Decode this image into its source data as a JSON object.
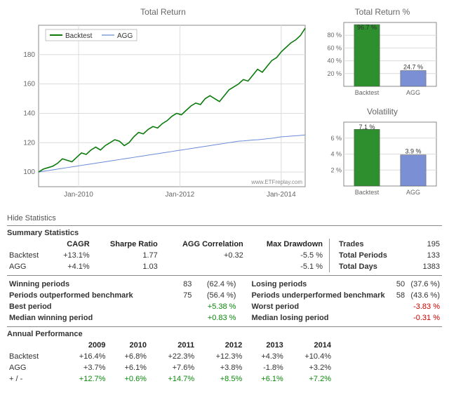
{
  "main_chart": {
    "title": "Total Return",
    "legend": [
      "Backtest",
      "AGG"
    ],
    "colors": {
      "backtest": "#0a7a0a",
      "agg": "#6a8ad8",
      "grid": "#dcdcdc",
      "axis": "#888",
      "bg": "#ffffff",
      "text": "#666"
    },
    "ylim": [
      90,
      200
    ],
    "yticks": [
      100,
      120,
      140,
      160,
      180
    ],
    "xlabels": [
      "Jan-2010",
      "Jan-2012",
      "Jan-2014"
    ],
    "footer": "www.ETFreplay.com",
    "backtest": [
      100,
      102,
      103,
      104,
      106,
      109,
      108,
      107,
      110,
      113,
      112,
      115,
      117,
      115,
      118,
      120,
      122,
      121,
      118,
      120,
      124,
      127,
      126,
      129,
      131,
      130,
      133,
      135,
      138,
      140,
      139,
      142,
      145,
      147,
      146,
      150,
      152,
      150,
      148,
      152,
      156,
      158,
      160,
      163,
      162,
      166,
      170,
      168,
      172,
      176,
      178,
      182,
      185,
      188,
      190,
      193,
      198
    ],
    "agg": [
      100,
      100.5,
      101,
      101.5,
      102,
      102.5,
      103,
      103.5,
      104,
      104.5,
      105,
      105.5,
      106,
      106.5,
      107,
      107.5,
      108,
      108.5,
      109,
      109.5,
      110,
      110.5,
      111,
      111.5,
      112,
      112.5,
      113,
      113.5,
      114,
      114.5,
      115,
      115.5,
      116,
      116.5,
      117,
      117.5,
      118,
      118.5,
      119,
      119.5,
      120,
      120.5,
      121,
      121.2,
      121.5,
      121.8,
      122,
      122.3,
      122.7,
      123,
      123.5,
      124,
      124.2,
      124.5,
      124.7,
      125,
      125.3
    ]
  },
  "bar1": {
    "title": "Total Return %",
    "categories": [
      "Backtest",
      "AGG"
    ],
    "values": [
      96.7,
      24.7
    ],
    "labels": [
      "96.7 %",
      "24.7 %"
    ],
    "colors": [
      "#2d8f2d",
      "#7a8fd4"
    ],
    "ylim": [
      0,
      100
    ],
    "yticks": [
      20,
      40,
      60,
      80
    ],
    "grid": "#dcdcdc",
    "axis": "#888",
    "text": "#666"
  },
  "bar2": {
    "title": "Volatility",
    "categories": [
      "Backtest",
      "AGG"
    ],
    "values": [
      7.1,
      3.9
    ],
    "labels": [
      "7.1 %",
      "3.9 %"
    ],
    "colors": [
      "#2d8f2d",
      "#7a8fd4"
    ],
    "ylim": [
      0,
      8
    ],
    "yticks": [
      2,
      4,
      6
    ],
    "grid": "#dcdcdc",
    "axis": "#888",
    "text": "#666"
  },
  "hide_stats": "Hide Statistics",
  "summary": {
    "title": "Summary Statistics",
    "cols": [
      "",
      "CAGR",
      "Sharpe Ratio",
      "AGG Correlation",
      "Max Drawdown"
    ],
    "rows": [
      [
        "Backtest",
        "+13.1%",
        "1.77",
        "+0.32",
        "-5.5 %"
      ],
      [
        "AGG",
        "+4.1%",
        "1.03",
        "",
        "-5.1 %"
      ]
    ],
    "side": [
      [
        "Trades",
        "195"
      ],
      [
        "Total Periods",
        "133"
      ],
      [
        "Total Days",
        "1383"
      ]
    ]
  },
  "periods": {
    "left": [
      {
        "label": "Winning periods",
        "v1": "83",
        "v2": "(62.4 %)",
        "cls": ""
      },
      {
        "label": "Periods outperformed benchmark",
        "v1": "75",
        "v2": "(56.4 %)",
        "cls": ""
      },
      {
        "label": "Best period",
        "v1": "",
        "v2": "+5.38 %",
        "cls": "green"
      },
      {
        "label": "Median winning period",
        "v1": "",
        "v2": "+0.83 %",
        "cls": "green"
      }
    ],
    "right": [
      {
        "label": "Losing periods",
        "v1": "50",
        "v2": "(37.6 %)",
        "cls": ""
      },
      {
        "label": "Periods underperformed benchmark",
        "v1": "58",
        "v2": "(43.6 %)",
        "cls": ""
      },
      {
        "label": "Worst period",
        "v1": "",
        "v2": "-3.83 %",
        "cls": "red"
      },
      {
        "label": "Median losing period",
        "v1": "",
        "v2": "-0.31 %",
        "cls": "red"
      }
    ]
  },
  "annual": {
    "title": "Annual Performance",
    "years": [
      "",
      "2009",
      "2010",
      "2011",
      "2012",
      "2013",
      "2014"
    ],
    "rows": [
      {
        "label": "Backtest",
        "vals": [
          "+16.4%",
          "+6.8%",
          "+22.3%",
          "+12.3%",
          "+4.3%",
          "+10.4%"
        ],
        "cls": ""
      },
      {
        "label": "AGG",
        "vals": [
          "+3.7%",
          "+6.1%",
          "+7.6%",
          "+3.8%",
          "-1.8%",
          "+3.2%"
        ],
        "cls": ""
      },
      {
        "label": "+ / -",
        "vals": [
          "+12.7%",
          "+0.6%",
          "+14.7%",
          "+8.5%",
          "+6.1%",
          "+7.2%"
        ],
        "cls": "green"
      }
    ]
  }
}
